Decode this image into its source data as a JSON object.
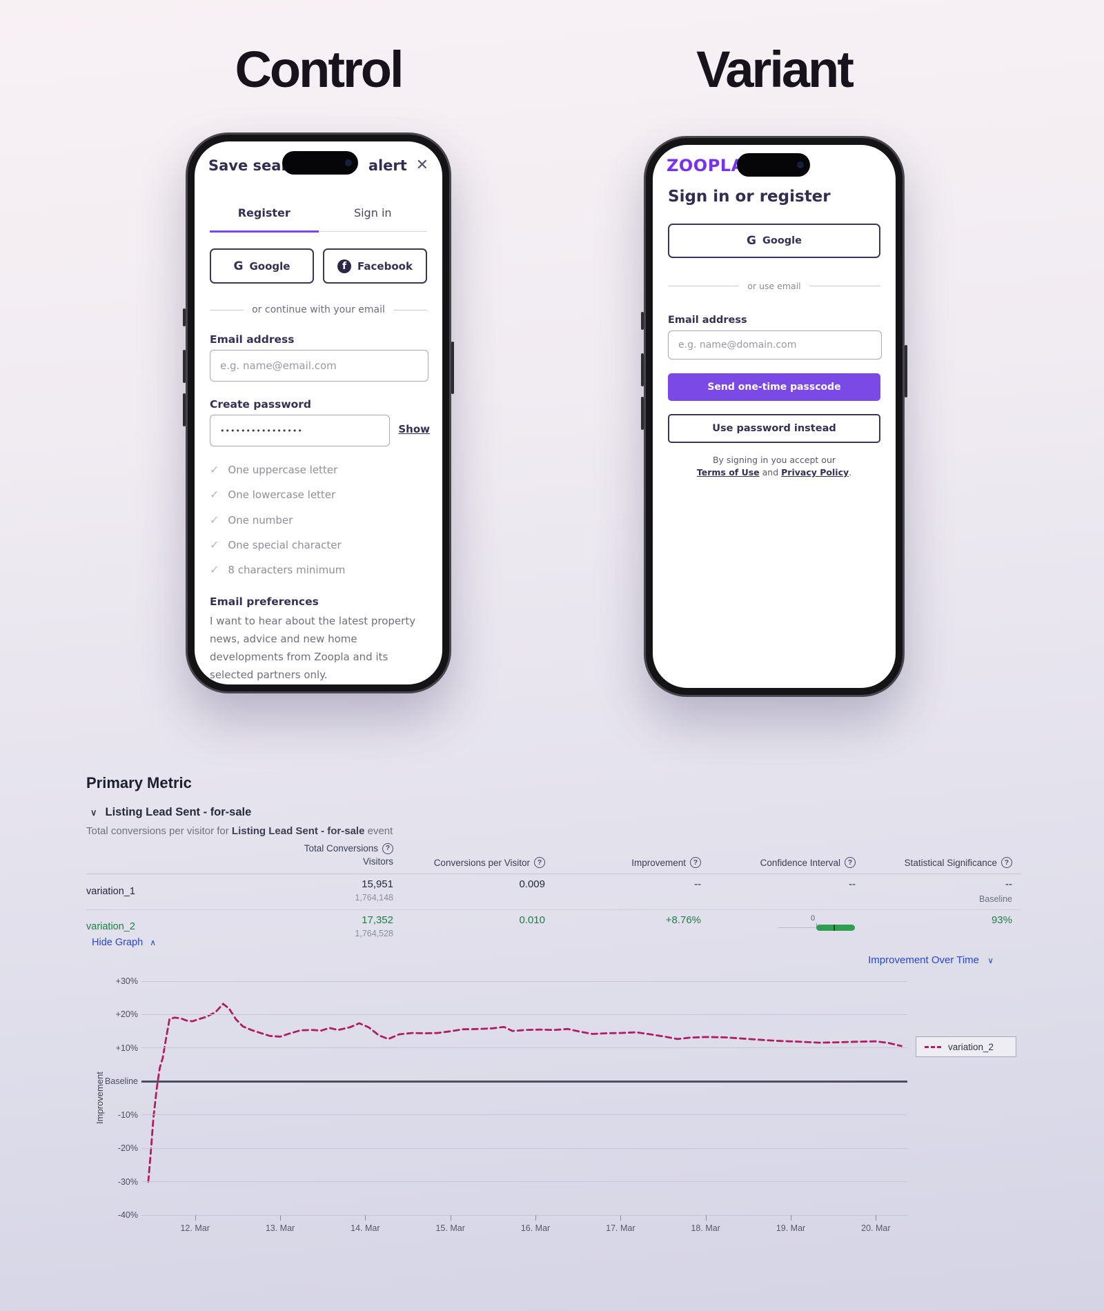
{
  "page": {
    "control_heading": "Control",
    "variant_heading": "Variant"
  },
  "icons": {
    "help": "?",
    "check": "✓",
    "close": "✕",
    "chevron_down": "∨",
    "chevron_up": "∧",
    "google_g": "G",
    "facebook_f": "f"
  },
  "control": {
    "title_prefix": "Save sear",
    "title_suffix": "alert",
    "tabs": {
      "register": "Register",
      "signin": "Sign in"
    },
    "google_label": "Google",
    "facebook_label": "Facebook",
    "email_divider": "or continue with your email",
    "email_label": "Email address",
    "email_placeholder": "e.g. name@email.com",
    "password_label": "Create password",
    "password_value": "••••••••••••••••",
    "show_label": "Show",
    "checklist": [
      "One uppercase letter",
      "One lowercase letter",
      "One number",
      "One special character",
      "8 characters minimum"
    ],
    "preferences_title": "Email preferences",
    "preferences_text": "I want to hear about the latest property news, advice and new home developments from Zoopla and its selected partners only."
  },
  "variant": {
    "logo": "ZOOPLA",
    "heading": "Sign in or register",
    "google_label": "Google",
    "divider": "or use email",
    "email_label": "Email address",
    "email_placeholder": "e.g. name@domain.com",
    "primary_button": "Send one-time passcode",
    "secondary_button": "Use password instead",
    "terms_prefix": "By signing in you accept our",
    "terms_link1": "Terms of Use",
    "terms_and": " and ",
    "terms_link2": "Privacy Policy",
    "terms_suffix": "."
  },
  "metrics": {
    "section_title": "Primary Metric",
    "metric_name": "Listing Lead Sent - for-sale",
    "subtitle_prefix": "Total conversions per visitor for ",
    "subtitle_bold": "Listing Lead Sent - for-sale",
    "subtitle_suffix": " event",
    "col_total_conversions": "Total Conversions",
    "col_visitors": "Visitors",
    "col_cpv": "Conversions per Visitor",
    "col_improvement": "Improvement",
    "col_ci": "Confidence Interval",
    "col_ss": "Statistical Significance",
    "rows": [
      {
        "name": "variation_1",
        "conversions": "15,951",
        "visitors": "1,764,148",
        "cpv": "0.009",
        "improvement": "--",
        "ci": "--",
        "ss": "--",
        "ss_note": "Baseline"
      },
      {
        "name": "variation_2",
        "conversions": "17,352",
        "visitors": "1,764,528",
        "cpv": "0.010",
        "improvement": "+8.76%",
        "ci_zero": "0",
        "ss": "93%"
      }
    ],
    "hide_graph": "Hide Graph",
    "improvement_over_time": "Improvement Over Time",
    "legend_label": "variation_2"
  },
  "chart_data": {
    "type": "line",
    "title": "Improvement Over Time",
    "ylabel": "Improvement",
    "legend_position": "right",
    "grid": true,
    "dashed": true,
    "line_color": "#b01d63",
    "baseline": 0,
    "ylim": [
      -40,
      30
    ],
    "xlim": [
      11.37,
      20.37
    ],
    "y_values": [
      30,
      20,
      10,
      0,
      -10,
      -20,
      -30,
      -40
    ],
    "y_labels": [
      "+30%",
      "+20%",
      "+10%",
      "Baseline",
      "-10%",
      "-20%",
      "-30%",
      "-40%"
    ],
    "x_values": [
      12,
      13,
      14,
      15,
      16,
      17,
      18,
      19,
      20
    ],
    "x_labels": [
      "12. Mar",
      "13. Mar",
      "14. Mar",
      "15. Mar",
      "16. Mar",
      "17. Mar",
      "18. Mar",
      "19. Mar",
      "20. Mar"
    ],
    "series": [
      {
        "name": "variation_2",
        "points": [
          [
            11.45,
            -30
          ],
          [
            11.48,
            -21
          ],
          [
            11.51,
            -11
          ],
          [
            11.55,
            -2
          ],
          [
            11.585,
            4
          ],
          [
            11.62,
            7
          ],
          [
            11.66,
            13
          ],
          [
            11.7,
            18.7
          ],
          [
            11.76,
            19.1
          ],
          [
            11.83,
            18.9
          ],
          [
            11.9,
            18.2
          ],
          [
            11.97,
            18.0
          ],
          [
            12.04,
            18.6
          ],
          [
            12.13,
            19.3
          ],
          [
            12.24,
            20.7
          ],
          [
            12.33,
            23.2
          ],
          [
            12.4,
            21.8
          ],
          [
            12.48,
            18.6
          ],
          [
            12.56,
            16.5
          ],
          [
            12.66,
            15.4
          ],
          [
            12.78,
            14.4
          ],
          [
            12.88,
            13.6
          ],
          [
            13.0,
            13.4
          ],
          [
            13.12,
            14.4
          ],
          [
            13.24,
            15.3
          ],
          [
            13.38,
            15.4
          ],
          [
            13.48,
            15.2
          ],
          [
            13.58,
            16.0
          ],
          [
            13.68,
            15.4
          ],
          [
            13.82,
            16.2
          ],
          [
            13.93,
            17.4
          ],
          [
            14.04,
            16.2
          ],
          [
            14.16,
            13.8
          ],
          [
            14.27,
            12.7
          ],
          [
            14.4,
            14.1
          ],
          [
            14.55,
            14.5
          ],
          [
            14.7,
            14.4
          ],
          [
            14.85,
            14.5
          ],
          [
            15.0,
            15.0
          ],
          [
            15.15,
            15.6
          ],
          [
            15.33,
            15.7
          ],
          [
            15.5,
            15.9
          ],
          [
            15.63,
            16.3
          ],
          [
            15.73,
            15.1
          ],
          [
            15.88,
            15.4
          ],
          [
            16.05,
            15.5
          ],
          [
            16.22,
            15.4
          ],
          [
            16.38,
            15.7
          ],
          [
            16.52,
            14.9
          ],
          [
            16.67,
            14.2
          ],
          [
            16.83,
            14.4
          ],
          [
            17.0,
            14.5
          ],
          [
            17.18,
            14.7
          ],
          [
            17.35,
            14.1
          ],
          [
            17.52,
            13.4
          ],
          [
            17.67,
            12.7
          ],
          [
            17.82,
            13.1
          ],
          [
            18.0,
            13.3
          ],
          [
            18.22,
            13.2
          ],
          [
            18.45,
            12.8
          ],
          [
            18.67,
            12.4
          ],
          [
            18.88,
            12.1
          ],
          [
            19.1,
            11.9
          ],
          [
            19.33,
            11.6
          ],
          [
            19.55,
            11.7
          ],
          [
            19.78,
            11.9
          ],
          [
            20.0,
            12.0
          ],
          [
            20.15,
            11.5
          ],
          [
            20.3,
            10.6
          ]
        ]
      }
    ]
  }
}
